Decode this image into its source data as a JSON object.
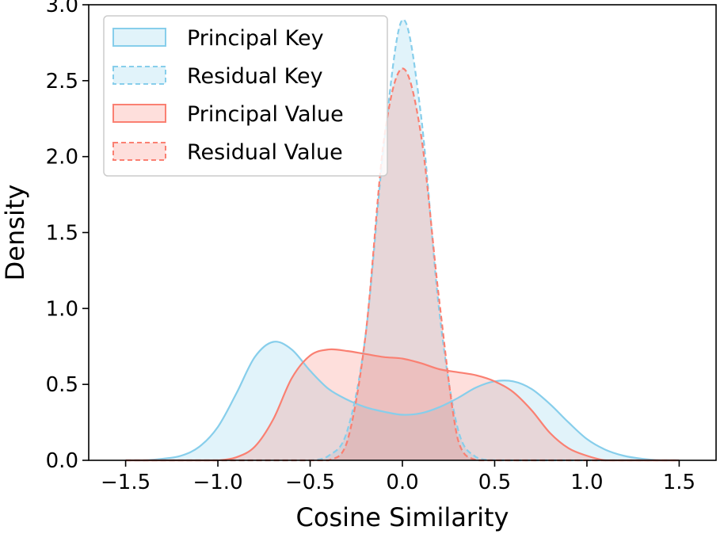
{
  "chart_data": {
    "type": "area",
    "xlabel": "Cosine Similarity",
    "ylabel": "Density",
    "xlim": [
      -1.7,
      1.7
    ],
    "ylim": [
      0,
      3.0
    ],
    "xticks": [
      -1.5,
      -1.0,
      -0.5,
      0.0,
      0.5,
      1.0,
      1.5
    ],
    "xtick_labels": [
      "−1.5",
      "−1.0",
      "−0.5",
      "0.0",
      "0.5",
      "1.0",
      "1.5"
    ],
    "yticks": [
      0.0,
      0.5,
      1.0,
      1.5,
      2.0,
      2.5,
      3.0
    ],
    "ytick_labels": [
      "0.0",
      "0.5",
      "1.0",
      "1.5",
      "2.0",
      "2.5",
      "3.0"
    ],
    "grid": false,
    "legend_position": "top-left",
    "x": [
      -1.5,
      -1.4,
      -1.3,
      -1.2,
      -1.1,
      -1.0,
      -0.9,
      -0.8,
      -0.7,
      -0.6,
      -0.5,
      -0.4,
      -0.3,
      -0.2,
      -0.1,
      0.0,
      0.1,
      0.2,
      0.3,
      0.4,
      0.5,
      0.6,
      0.7,
      0.8,
      0.9,
      1.0,
      1.1,
      1.2,
      1.3,
      1.4,
      1.5
    ],
    "series": [
      {
        "name": "Principal Key",
        "line_style": "solid",
        "color": "#87CEEB",
        "values": [
          0.0,
          0.0,
          0.01,
          0.03,
          0.09,
          0.22,
          0.44,
          0.68,
          0.78,
          0.73,
          0.59,
          0.47,
          0.4,
          0.35,
          0.32,
          0.3,
          0.31,
          0.35,
          0.41,
          0.48,
          0.52,
          0.52,
          0.47,
          0.37,
          0.25,
          0.14,
          0.07,
          0.03,
          0.01,
          0.0,
          0.0
        ]
      },
      {
        "name": "Residual Key",
        "line_style": "dashed",
        "color": "#87CEEB",
        "values": [
          0,
          0,
          0,
          0,
          0,
          0,
          0,
          0,
          0,
          0,
          0.0,
          0.03,
          0.19,
          0.82,
          2.08,
          2.9,
          2.28,
          0.98,
          0.21,
          0.02,
          0,
          0,
          0,
          0,
          0,
          0,
          0,
          0,
          0,
          0,
          0
        ]
      },
      {
        "name": "Principal Value",
        "line_style": "solid",
        "color": "#FA8072",
        "values": [
          0,
          0,
          0,
          0,
          0,
          0.0,
          0.02,
          0.09,
          0.27,
          0.54,
          0.69,
          0.73,
          0.72,
          0.7,
          0.68,
          0.67,
          0.64,
          0.6,
          0.58,
          0.56,
          0.52,
          0.45,
          0.33,
          0.18,
          0.08,
          0.03,
          0.0,
          0,
          0,
          0,
          0
        ]
      },
      {
        "name": "Residual Value",
        "line_style": "dashed",
        "color": "#FA8072",
        "values": [
          0,
          0,
          0,
          0,
          0,
          0,
          0,
          0,
          0,
          0,
          0.0,
          0.0,
          0.12,
          0.82,
          2.11,
          2.58,
          2.15,
          1.05,
          0.14,
          0.0,
          0,
          0,
          0,
          0,
          0,
          0,
          0,
          0,
          0,
          0,
          0
        ]
      }
    ]
  }
}
